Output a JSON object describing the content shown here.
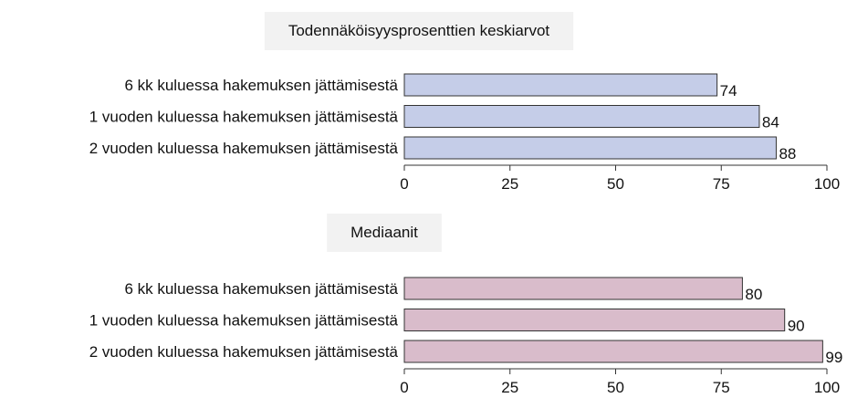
{
  "chart_data": [
    {
      "type": "barh",
      "title": "Todennäköisyysprosenttien keskiarvot",
      "categories": [
        "6 kk kuluessa hakemuksen jättämisestä",
        "1 vuoden kuluessa hakemuksen jättämisestä",
        "2 vuoden kuluessa hakemuksen jättämisestä"
      ],
      "values": [
        74,
        84,
        88
      ],
      "color": "#c5cde8",
      "xlim": [
        0,
        100
      ],
      "xticks": [
        0,
        25,
        50,
        75,
        100
      ]
    },
    {
      "type": "barh",
      "title": "Mediaanit",
      "categories": [
        "6 kk kuluessa hakemuksen jättämisestä",
        "1 vuoden kuluessa hakemuksen jättämisestä",
        "2 vuoden kuluessa hakemuksen jättämisestä"
      ],
      "values": [
        80,
        90,
        99
      ],
      "color": "#d9bccb",
      "xlim": [
        0,
        100
      ],
      "xticks": [
        0,
        25,
        50,
        75,
        100
      ]
    }
  ]
}
